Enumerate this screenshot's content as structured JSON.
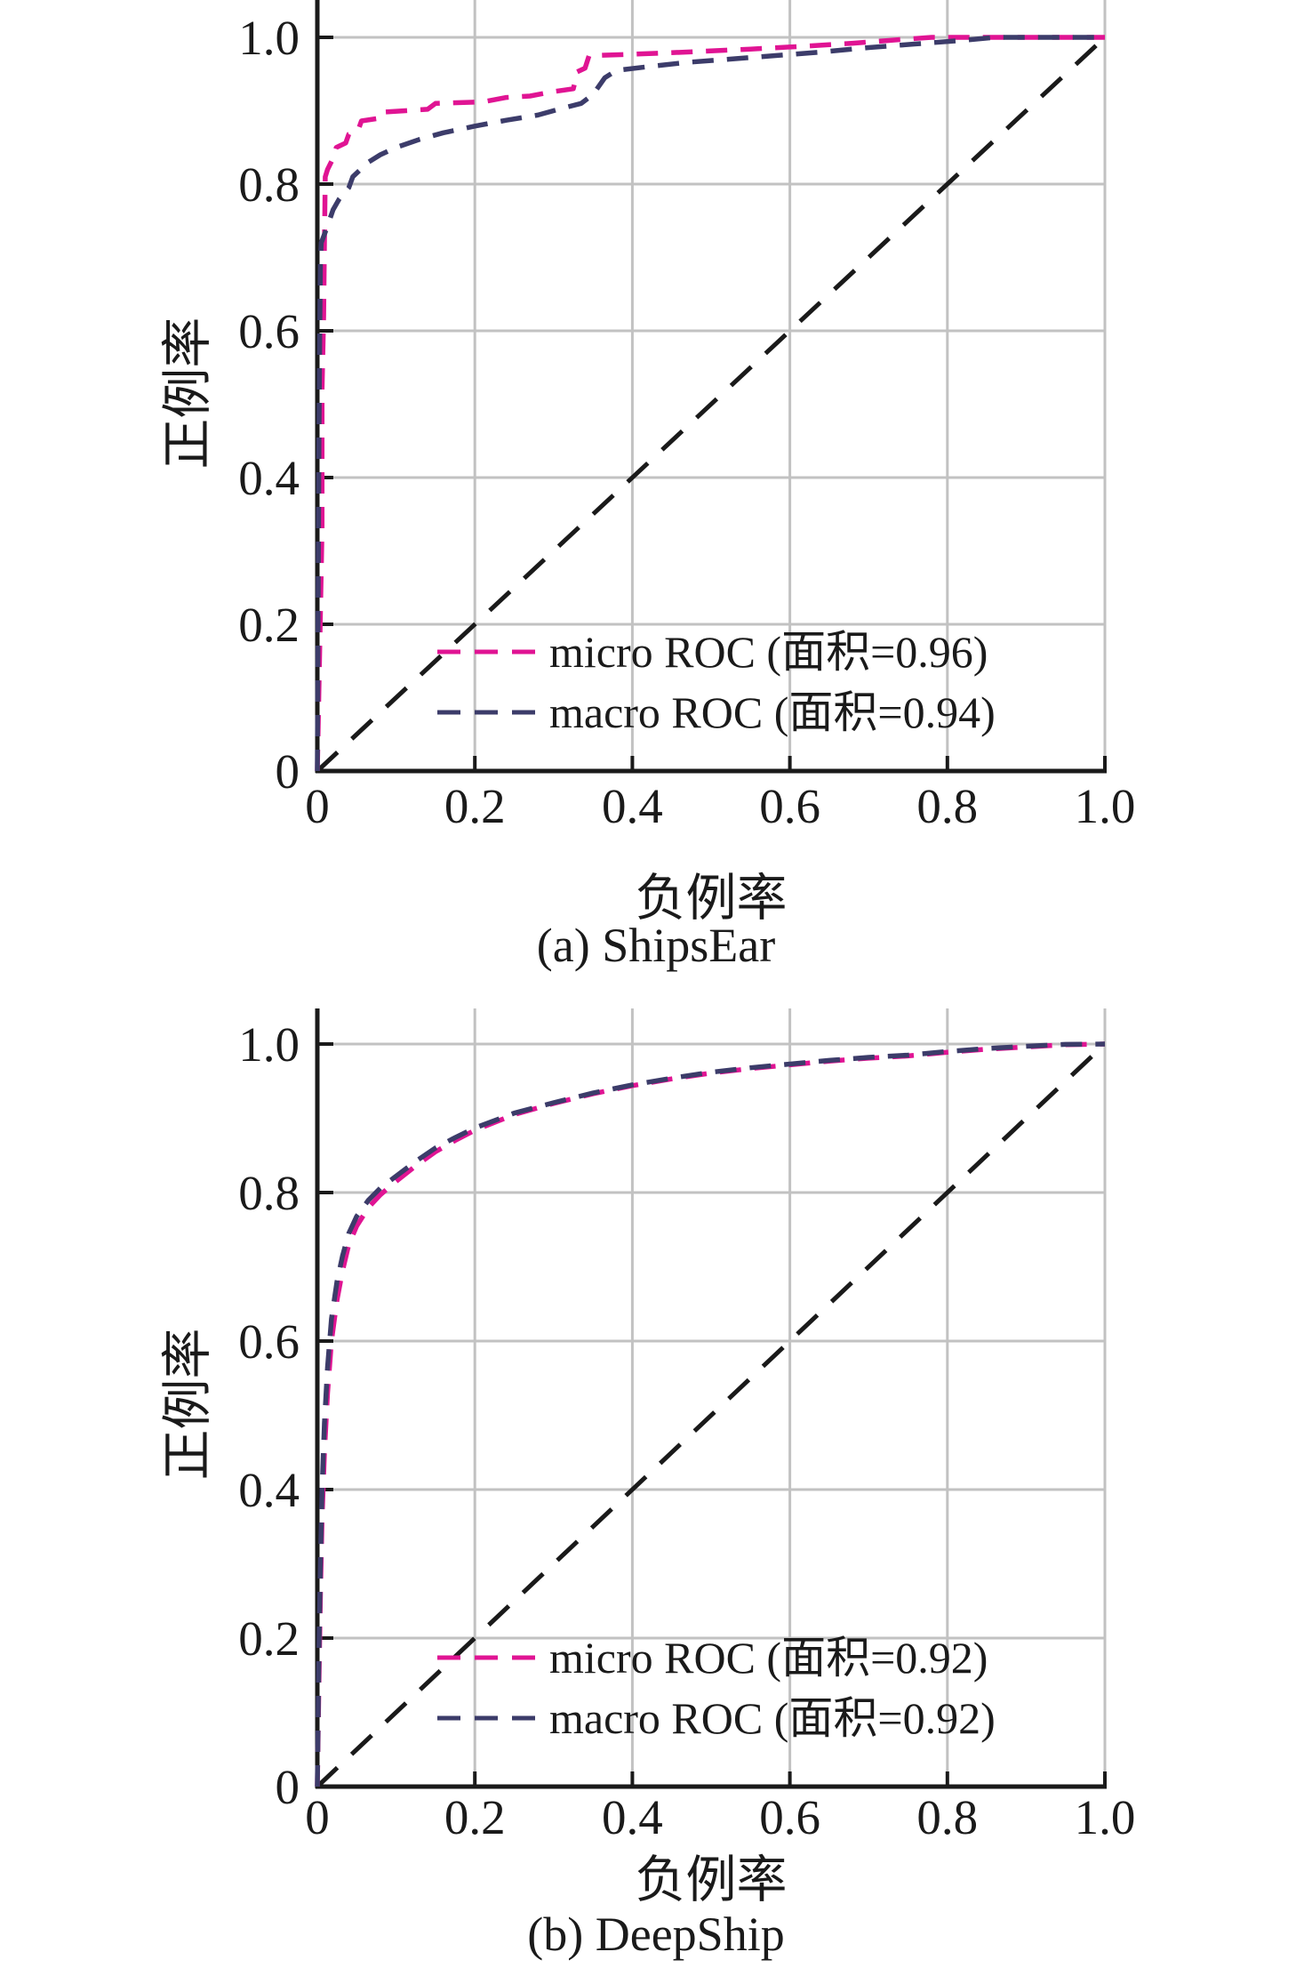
{
  "page": {
    "background": "#ffffff"
  },
  "style": {
    "grid_color": "#c2c2c2",
    "axis_color": "#1a1a1a",
    "text_color": "#1a1a1a",
    "micro_color": "#e01493",
    "macro_color": "#3c3c6a"
  },
  "chart_data": [
    {
      "type": "line",
      "title": "",
      "caption": "(a) ShipsEar",
      "xlabel": "负例率",
      "ylabel": "正例率",
      "xlim": [
        0,
        1.0
      ],
      "ylim": [
        0,
        1.05
      ],
      "grid": true,
      "legend_position": "lower right inside plot",
      "x_ticks": [
        0,
        0.2,
        0.4,
        0.6,
        0.8,
        1.0
      ],
      "x_tick_labels": [
        "0",
        "0.2",
        "0.4",
        "0.6",
        "0.8",
        "1.0"
      ],
      "y_ticks": [
        0,
        0.2,
        0.4,
        0.6,
        0.8,
        1.0
      ],
      "y_tick_labels": [
        "0",
        "0.2",
        "0.4",
        "0.6",
        "0.8",
        "1.0"
      ],
      "reference_line": {
        "name": "chance diagonal",
        "from": [
          0,
          0
        ],
        "to": [
          1,
          1
        ],
        "color": "#1a1a1a",
        "style": "dashed"
      },
      "series": [
        {
          "name": "micro ROC",
          "label": "micro ROC (面积=0.96)",
          "auc": 0.96,
          "color": "#e01493",
          "style": "dashed",
          "points": [
            [
              0,
              0
            ],
            [
              0.006,
              0.33
            ],
            [
              0.006,
              0.52
            ],
            [
              0.008,
              0.62
            ],
            [
              0.009,
              0.72
            ],
            [
              0.01,
              0.81
            ],
            [
              0.013,
              0.82
            ],
            [
              0.02,
              0.835
            ],
            [
              0.024,
              0.85
            ],
            [
              0.036,
              0.856
            ],
            [
              0.04,
              0.868
            ],
            [
              0.052,
              0.874
            ],
            [
              0.056,
              0.886
            ],
            [
              0.08,
              0.89
            ],
            [
              0.084,
              0.898
            ],
            [
              0.14,
              0.902
            ],
            [
              0.15,
              0.91
            ],
            [
              0.21,
              0.912
            ],
            [
              0.24,
              0.918
            ],
            [
              0.27,
              0.92
            ],
            [
              0.3,
              0.926
            ],
            [
              0.325,
              0.93
            ],
            [
              0.33,
              0.953
            ],
            [
              0.34,
              0.958
            ],
            [
              0.345,
              0.975
            ],
            [
              0.4,
              0.977
            ],
            [
              0.47,
              0.98
            ],
            [
              0.55,
              0.984
            ],
            [
              0.62,
              0.988
            ],
            [
              0.68,
              0.992
            ],
            [
              0.74,
              0.997
            ],
            [
              0.78,
              1.0
            ],
            [
              1.0,
              1.0
            ]
          ]
        },
        {
          "name": "macro ROC",
          "label": "macro ROC (面积=0.94)",
          "auc": 0.94,
          "color": "#3c3c6a",
          "style": "dashed",
          "points": [
            [
              0,
              0
            ],
            [
              0.002,
              0.45
            ],
            [
              0.003,
              0.6
            ],
            [
              0.004,
              0.695
            ],
            [
              0.005,
              0.72
            ],
            [
              0.012,
              0.74
            ],
            [
              0.02,
              0.765
            ],
            [
              0.028,
              0.78
            ],
            [
              0.04,
              0.795
            ],
            [
              0.045,
              0.81
            ],
            [
              0.055,
              0.82
            ],
            [
              0.065,
              0.83
            ],
            [
              0.08,
              0.84
            ],
            [
              0.1,
              0.85
            ],
            [
              0.13,
              0.861
            ],
            [
              0.16,
              0.87
            ],
            [
              0.2,
              0.879
            ],
            [
              0.24,
              0.887
            ],
            [
              0.28,
              0.894
            ],
            [
              0.31,
              0.903
            ],
            [
              0.335,
              0.91
            ],
            [
              0.35,
              0.922
            ],
            [
              0.365,
              0.945
            ],
            [
              0.38,
              0.955
            ],
            [
              0.42,
              0.96
            ],
            [
              0.47,
              0.966
            ],
            [
              0.52,
              0.97
            ],
            [
              0.58,
              0.975
            ],
            [
              0.64,
              0.98
            ],
            [
              0.7,
              0.986
            ],
            [
              0.76,
              0.991
            ],
            [
              0.82,
              0.996
            ],
            [
              0.86,
              1.0
            ],
            [
              1.0,
              1.0
            ]
          ]
        }
      ]
    },
    {
      "type": "line",
      "title": "",
      "caption": "(b) DeepShip",
      "xlabel": "负例率",
      "ylabel": "正例率",
      "xlim": [
        0,
        1.0
      ],
      "ylim": [
        0,
        1.05
      ],
      "grid": true,
      "legend_position": "lower right inside plot",
      "x_ticks": [
        0,
        0.2,
        0.4,
        0.6,
        0.8,
        1.0
      ],
      "x_tick_labels": [
        "0",
        "0.2",
        "0.4",
        "0.6",
        "0.8",
        "1.0"
      ],
      "y_ticks": [
        0,
        0.2,
        0.4,
        0.6,
        0.8,
        1.0
      ],
      "y_tick_labels": [
        "0",
        "0.2",
        "0.4",
        "0.6",
        "0.8",
        "1.0"
      ],
      "reference_line": {
        "name": "chance diagonal",
        "from": [
          0,
          0
        ],
        "to": [
          1,
          1
        ],
        "color": "#1a1a1a",
        "style": "dashed"
      },
      "series": [
        {
          "name": "micro ROC",
          "label": "micro ROC (面积=0.92)",
          "auc": 0.92,
          "color": "#e01493",
          "style": "dashed",
          "points": [
            [
              0,
              0
            ],
            [
              0.002,
              0.14
            ],
            [
              0.004,
              0.26
            ],
            [
              0.006,
              0.36
            ],
            [
              0.009,
              0.45
            ],
            [
              0.013,
              0.53
            ],
            [
              0.018,
              0.6
            ],
            [
              0.025,
              0.655
            ],
            [
              0.032,
              0.695
            ],
            [
              0.04,
              0.73
            ],
            [
              0.05,
              0.755
            ],
            [
              0.065,
              0.78
            ],
            [
              0.08,
              0.797
            ],
            [
              0.1,
              0.815
            ],
            [
              0.125,
              0.836
            ],
            [
              0.15,
              0.855
            ],
            [
              0.175,
              0.87
            ],
            [
              0.2,
              0.884
            ],
            [
              0.25,
              0.905
            ],
            [
              0.3,
              0.92
            ],
            [
              0.35,
              0.933
            ],
            [
              0.4,
              0.944
            ],
            [
              0.45,
              0.953
            ],
            [
              0.5,
              0.961
            ],
            [
              0.55,
              0.967
            ],
            [
              0.6,
              0.972
            ],
            [
              0.65,
              0.977
            ],
            [
              0.7,
              0.981
            ],
            [
              0.75,
              0.984
            ],
            [
              0.8,
              0.989
            ],
            [
              0.85,
              0.993
            ],
            [
              0.9,
              0.996
            ],
            [
              0.95,
              0.999
            ],
            [
              1.0,
              1.0
            ]
          ]
        },
        {
          "name": "macro ROC",
          "label": "macro ROC (面积=0.92)",
          "auc": 0.92,
          "color": "#3c3c6a",
          "style": "dashed",
          "points": [
            [
              0,
              0
            ],
            [
              0.002,
              0.18
            ],
            [
              0.004,
              0.3
            ],
            [
              0.006,
              0.4
            ],
            [
              0.009,
              0.49
            ],
            [
              0.013,
              0.565
            ],
            [
              0.018,
              0.63
            ],
            [
              0.025,
              0.68
            ],
            [
              0.032,
              0.715
            ],
            [
              0.04,
              0.745
            ],
            [
              0.05,
              0.768
            ],
            [
              0.065,
              0.79
            ],
            [
              0.08,
              0.806
            ],
            [
              0.1,
              0.822
            ],
            [
              0.125,
              0.842
            ],
            [
              0.15,
              0.86
            ],
            [
              0.175,
              0.874
            ],
            [
              0.2,
              0.887
            ],
            [
              0.25,
              0.907
            ],
            [
              0.3,
              0.921
            ],
            [
              0.35,
              0.934
            ],
            [
              0.4,
              0.945
            ],
            [
              0.45,
              0.954
            ],
            [
              0.5,
              0.962
            ],
            [
              0.55,
              0.968
            ],
            [
              0.6,
              0.973
            ],
            [
              0.65,
              0.978
            ],
            [
              0.7,
              0.982
            ],
            [
              0.75,
              0.985
            ],
            [
              0.8,
              0.99
            ],
            [
              0.85,
              0.994
            ],
            [
              0.9,
              0.997
            ],
            [
              0.95,
              0.9995
            ],
            [
              1.0,
              1.0
            ]
          ]
        }
      ]
    }
  ]
}
